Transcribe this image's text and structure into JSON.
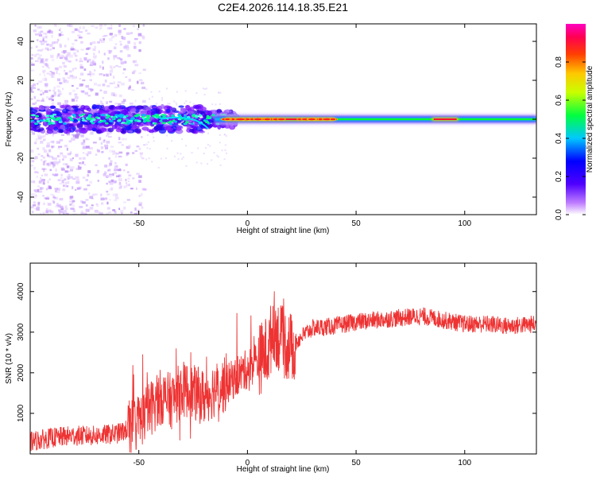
{
  "page": {
    "title": "C2E4.2026.114.18.35.E21"
  },
  "chart_data": [
    {
      "type": "heatmap",
      "xlabel": "Height of straight line (km)",
      "ylabel": "Frequency (Hz)",
      "xlim": [
        -100,
        133
      ],
      "ylim": [
        -49,
        49
      ],
      "xticks": [
        -50,
        0,
        50,
        100
      ],
      "yticks": [
        -40,
        -20,
        0,
        20,
        40
      ],
      "colorbar": {
        "label": "Normalized spectral amplitude",
        "range": [
          0,
          1
        ],
        "ticks": [
          "0.0",
          "0.2",
          "0.4",
          "0.6",
          "0.8"
        ],
        "tick_values": [
          0.0,
          0.2,
          0.4,
          0.6,
          0.8
        ],
        "colors": [
          "#ffffff",
          "#a000ff",
          "#0000ff",
          "#00e0ff",
          "#00ff00",
          "#ffff00",
          "#ff8000",
          "#ff0000",
          "#ff00a0"
        ]
      },
      "ridge": {
        "center_frequency_hz": 0,
        "strong_segments_km": [
          [
            -10,
            40
          ],
          [
            85,
            97
          ]
        ]
      }
    },
    {
      "type": "line",
      "xlabel": "Height of straight line (km)",
      "ylabel": "SNR (10 * v/v)",
      "xlim": [
        -100,
        133
      ],
      "ylim": [
        0,
        4700
      ],
      "xticks": [
        -50,
        0,
        50,
        100
      ],
      "yticks": [
        1000,
        2000,
        3000,
        4000
      ],
      "color": "#ee3333",
      "series": [
        {
          "x": [
            -100,
            -90,
            -80,
            -70,
            -60,
            -55,
            -50,
            -45,
            -40,
            -35,
            -30,
            -25,
            -20,
            -15,
            -10,
            -5,
            0,
            5,
            10,
            12,
            15,
            20,
            25,
            30,
            40,
            50,
            60,
            70,
            80,
            90,
            100,
            110,
            120,
            133
          ],
          "y": [
            300,
            400,
            450,
            450,
            500,
            600,
            800,
            1100,
            1400,
            1300,
            1600,
            1500,
            1400,
            1600,
            1700,
            1900,
            2100,
            2300,
            2600,
            3200,
            2800,
            2600,
            2900,
            3100,
            3150,
            3250,
            3300,
            3350,
            3400,
            3300,
            3200,
            3200,
            3150,
            3200
          ]
        }
      ]
    }
  ]
}
